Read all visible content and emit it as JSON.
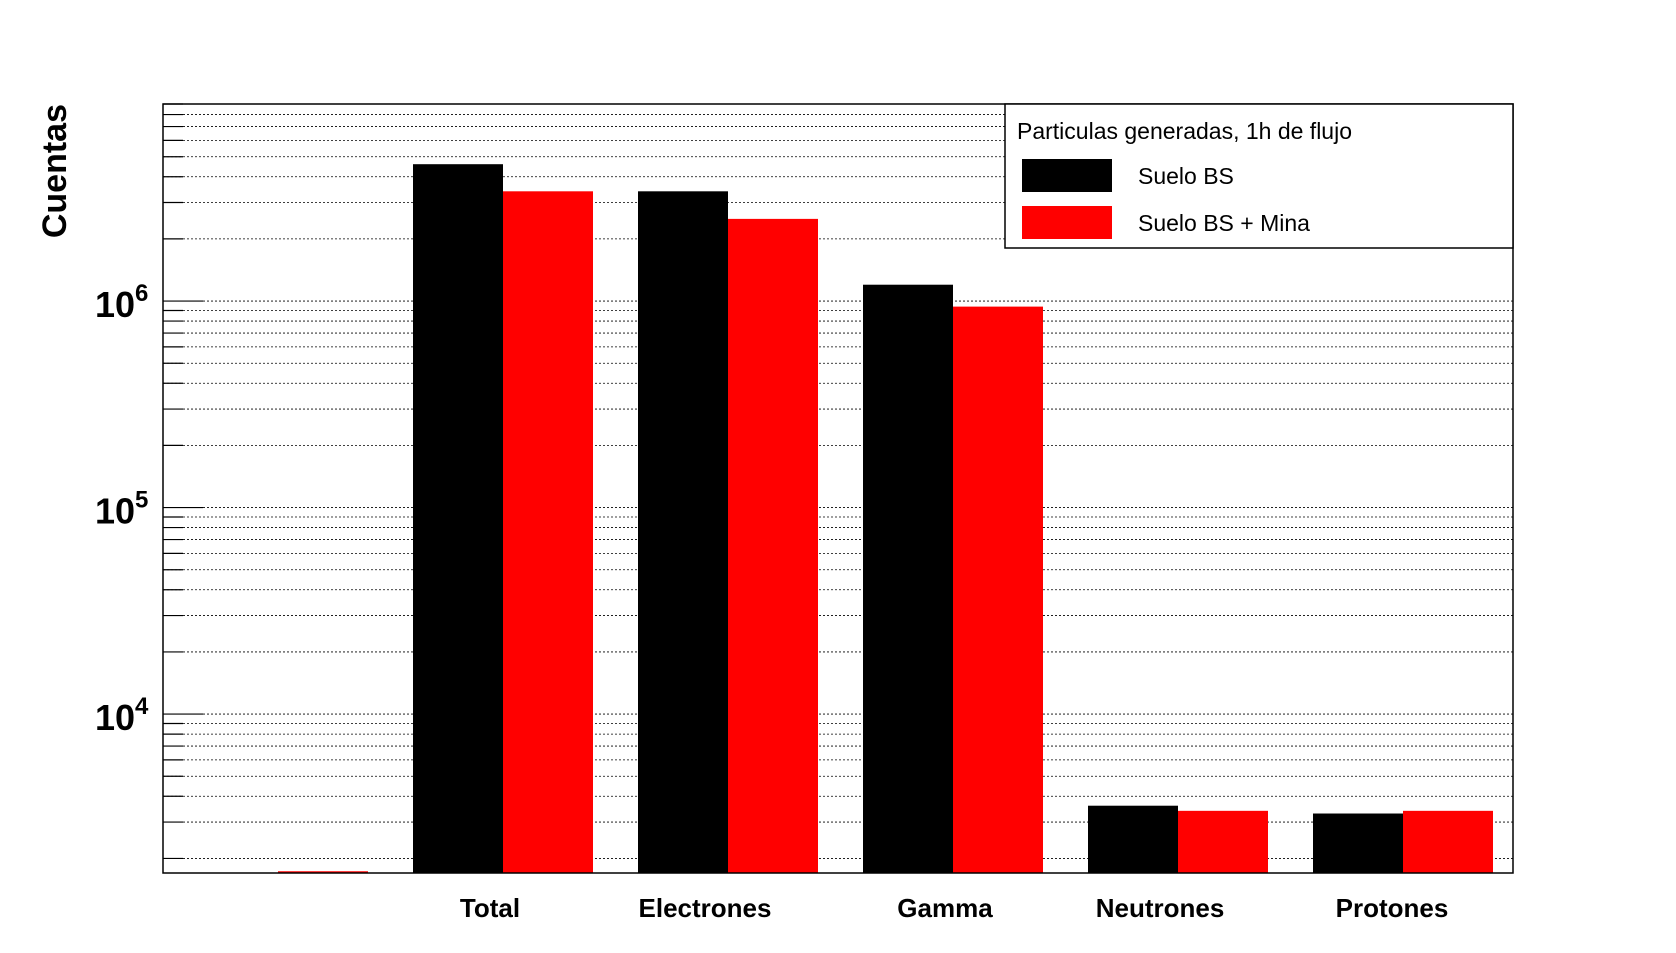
{
  "chart_data": {
    "type": "bar",
    "title": "",
    "xlabel": "",
    "ylabel": "Cuentas",
    "yscale": "log",
    "ylim": [
      1700,
      9000000
    ],
    "grid": true,
    "legend_position": "top-right",
    "legend_title": "Particulas generadas, 1h de flujo",
    "categories": [
      "",
      "Total",
      "Electrones",
      "Gamma",
      "Neutrones",
      "Protones"
    ],
    "series": [
      {
        "name": "Suelo BS",
        "color": "#000000",
        "values": [
          null,
          4600000,
          3400000,
          1200000,
          3600,
          3300
        ]
      },
      {
        "name": "Suelo BS + Mina",
        "color": "#ff0000",
        "values": [
          null,
          3400000,
          2500000,
          940000,
          3400,
          3400
        ]
      }
    ],
    "y_ticks": [
      {
        "base": "10",
        "exp": "4",
        "value": 10000
      },
      {
        "base": "10",
        "exp": "5",
        "value": 100000
      },
      {
        "base": "10",
        "exp": "6",
        "value": 1000000
      }
    ]
  }
}
